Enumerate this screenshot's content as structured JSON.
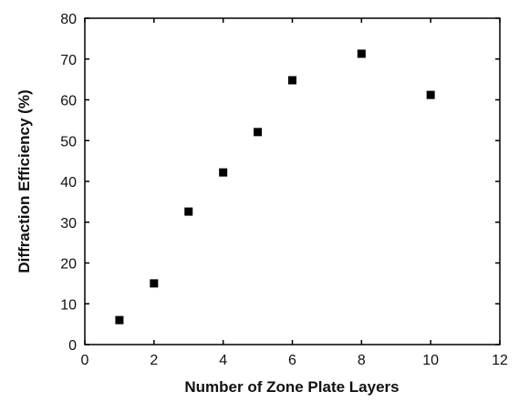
{
  "chart_data": {
    "type": "scatter",
    "title": "",
    "xlabel": "Number of Zone Plate Layers",
    "ylabel": "Diffraction Efficiency (%)",
    "xlim": [
      0,
      12
    ],
    "ylim": [
      0,
      80
    ],
    "x_ticks": [
      0,
      2,
      4,
      6,
      8,
      10,
      12
    ],
    "y_ticks": [
      0,
      10,
      20,
      30,
      40,
      50,
      60,
      70,
      80
    ],
    "grid": false,
    "legend": "none",
    "marker": "square",
    "marker_color": "#000000",
    "series": [
      {
        "x": [
          1,
          2,
          3,
          4,
          5,
          6,
          8,
          10
        ],
        "y": [
          6,
          15,
          32.6,
          42.2,
          52.1,
          64.8,
          71.3,
          61.2
        ]
      }
    ]
  }
}
